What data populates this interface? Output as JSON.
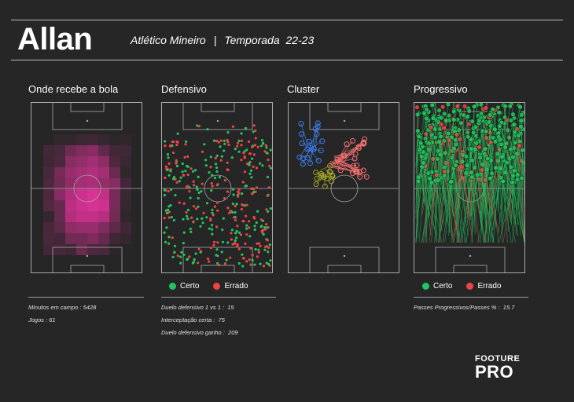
{
  "header": {
    "player_name": "Allan",
    "club": "Atlético Mineiro",
    "separator": "|",
    "season_label": "Temporada",
    "season": "22-23"
  },
  "panels": {
    "receive": {
      "title": "Onde recebe a bola"
    },
    "defensive": {
      "title": "Defensivo"
    },
    "cluster": {
      "title": "Cluster"
    },
    "progressive": {
      "title": "Progressivo"
    }
  },
  "legend": {
    "correct_label": "Certo",
    "wrong_label": "Errado",
    "correct_color": "#22c55e",
    "wrong_color": "#ef4444"
  },
  "stats": {
    "minutes": "Minutos em campo : 5428",
    "games": "Jogos : 61",
    "duels_1v1": "Duelo defensivo 1 vs 1 :  15",
    "interceptions": "Interceptação certa :  75",
    "duels_won": "Duelo defensivo ganho :  209",
    "progressive_passes": "Passes Progressivos/Passes % :  15.7"
  },
  "brand": {
    "line1": "FOOTURE",
    "line2": "PRO"
  },
  "colors": {
    "background": "#262626",
    "heatmap": "#e0339a",
    "cluster_blue": "#3b82f6",
    "cluster_olive": "#a3a32a",
    "cluster_red": "#f87171"
  }
}
